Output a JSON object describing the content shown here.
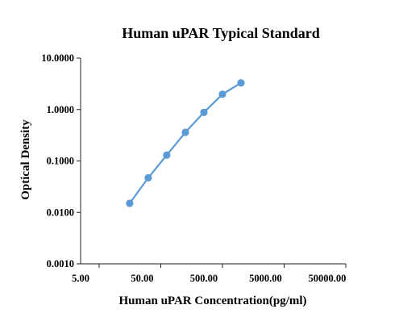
{
  "chart_data": {
    "type": "line",
    "title": "Human uPAR Typical Standard",
    "xlabel": "Human uPAR Concentration(pg/ml)",
    "ylabel": "Optical Density",
    "x_scale": "log",
    "y_scale": "log",
    "xlim": [
      5,
      100000
    ],
    "ylim": [
      0.001,
      10
    ],
    "x_tick_values": [
      5,
      50,
      500,
      5000,
      50000
    ],
    "x_tick_labels": [
      "5.00",
      "50.00",
      "500.00",
      "5000.00",
      "50000.00"
    ],
    "y_tick_values": [
      10,
      1,
      0.1,
      0.01,
      0.001
    ],
    "y_tick_labels": [
      "10.0000",
      "1.0000",
      "0.1000",
      "0.0100",
      "0.0010"
    ],
    "grid": false,
    "legend": "none",
    "series": [
      {
        "color": "#5b9bd5",
        "x": [
          31.25,
          62.5,
          125,
          250,
          500,
          1000,
          2000
        ],
        "y": [
          0.015,
          0.047,
          0.13,
          0.36,
          0.88,
          1.98,
          3.3
        ]
      }
    ]
  }
}
